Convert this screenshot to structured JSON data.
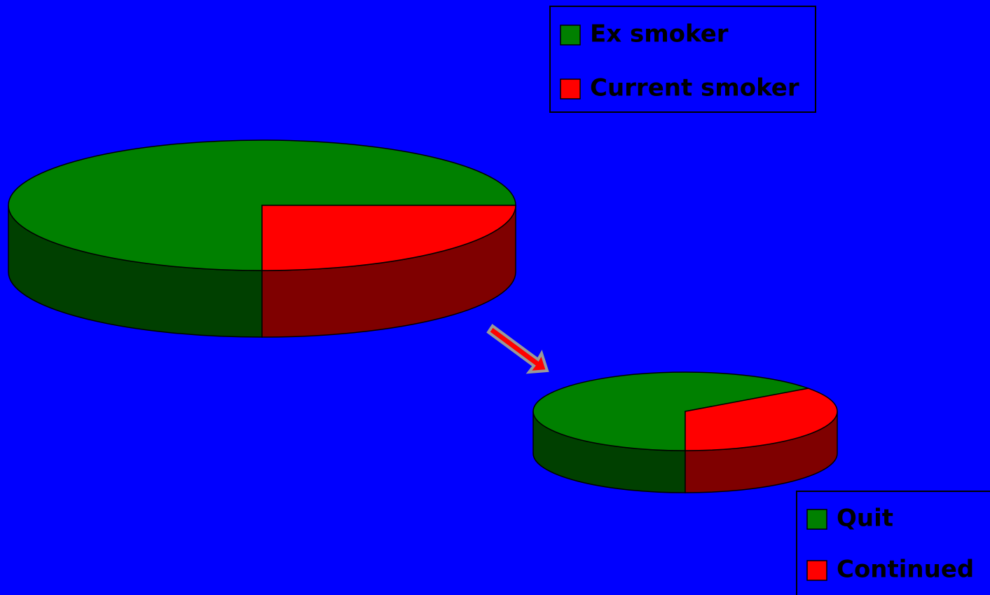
{
  "chart_data": [
    {
      "type": "pie",
      "categories": [
        "Ex smoker",
        "Current smoker"
      ],
      "values": [
        75,
        25
      ],
      "colors": [
        "#008000",
        "#ff0000"
      ]
    },
    {
      "type": "pie",
      "categories": [
        "Quit",
        "Continued"
      ],
      "values": [
        65,
        35
      ],
      "colors": [
        "#008000",
        "#ff0000"
      ]
    }
  ]
}
